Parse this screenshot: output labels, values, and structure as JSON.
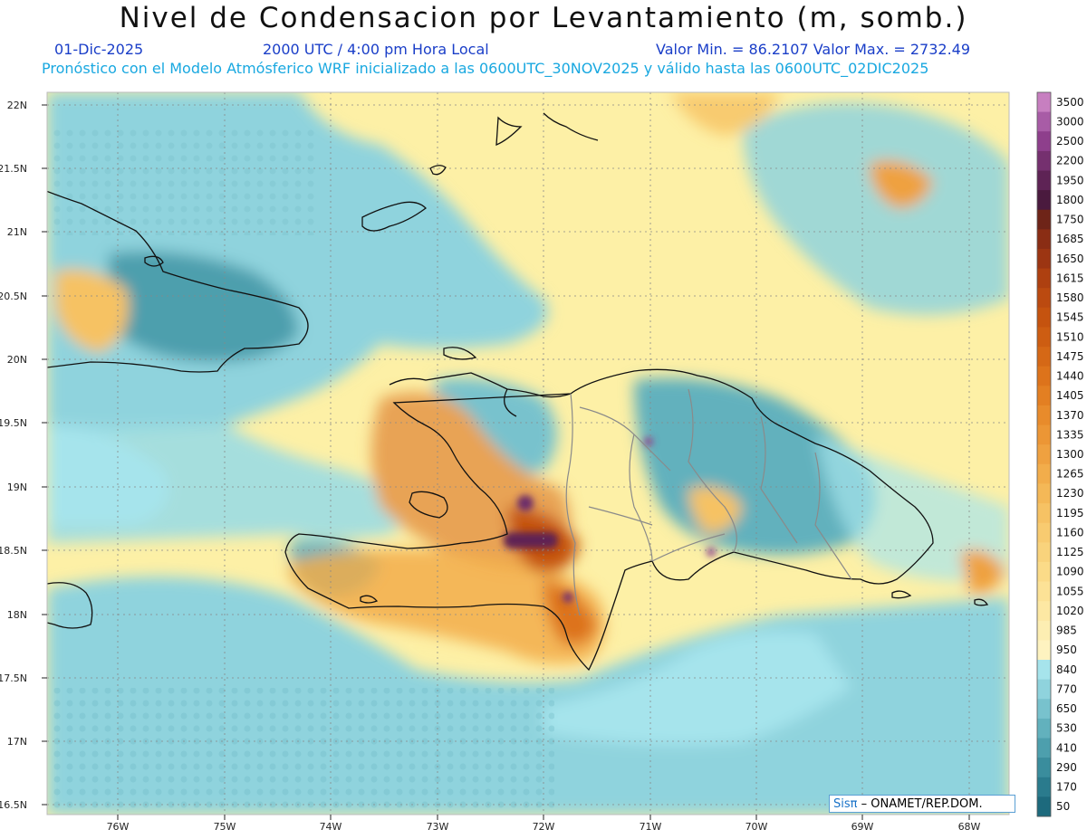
{
  "header": {
    "title": "Nivel de Condensacion por Levantamiento (m, somb.)",
    "date": "01-Dic-2025",
    "time": "2000 UTC / 4:00 pm Hora Local",
    "minmax": "Valor Min. = 86.2107   Valor Max. = 2732.49",
    "model_line": "Pronóstico con el Modelo Atmósferico WRF inicializado a las 0600UTC_30NOV2025 y válido hasta las  0600UTC_02DIC2025"
  },
  "axes": {
    "lat_labels": [
      "22N",
      "21.5N",
      "21N",
      "20.5N",
      "20N",
      "19.5N",
      "19N",
      "18.5N",
      "18N",
      "17.5N",
      "17N",
      "16.5N"
    ],
    "lon_labels": [
      "76W",
      "75W",
      "74W",
      "73W",
      "72W",
      "71W",
      "70W",
      "69W",
      "68W"
    ]
  },
  "colorbar": {
    "labels": [
      "3500",
      "3000",
      "2500",
      "2200",
      "1950",
      "1800",
      "1750",
      "1685",
      "1650",
      "1615",
      "1580",
      "1545",
      "1510",
      "1475",
      "1440",
      "1405",
      "1370",
      "1335",
      "1300",
      "1265",
      "1230",
      "1195",
      "1160",
      "1125",
      "1090",
      "1055",
      "1020",
      "985",
      "950",
      "840",
      "770",
      "650",
      "530",
      "410",
      "290",
      "170",
      "50"
    ],
    "colors": [
      "#c77fc0",
      "#a85ca6",
      "#8e3f8c",
      "#75306f",
      "#5e2355",
      "#4a1a3e",
      "#6e2418",
      "#8a2d14",
      "#9c3512",
      "#ae4010",
      "#bb4a10",
      "#c5530f",
      "#cd5d12",
      "#d56816",
      "#dd731b",
      "#e37f22",
      "#e88b2b",
      "#ec9635",
      "#efa140",
      "#f2ad4b",
      "#f4b857",
      "#f6c264",
      "#f8cb70",
      "#f9d37c",
      "#fbdb88",
      "#fce296",
      "#fde8a3",
      "#fdeeb2",
      "#fef3c0",
      "#a6e4ec",
      "#8fd3dd",
      "#78c2cd",
      "#62b1bd",
      "#4d9fad",
      "#3a8d9d",
      "#2a7b8d",
      "#1d6a7d"
    ]
  },
  "credit": {
    "logo": "Sisπ",
    "text": " – ONAMET/REP.DOM."
  },
  "palette": {
    "sea_yellow": "#fdf0a6",
    "teal": "#8ccfd6",
    "deep_teal": "#4aa0ad",
    "orange": "#e8a354",
    "dark_orange": "#c56a2a",
    "purple": "#6a2a6a"
  }
}
